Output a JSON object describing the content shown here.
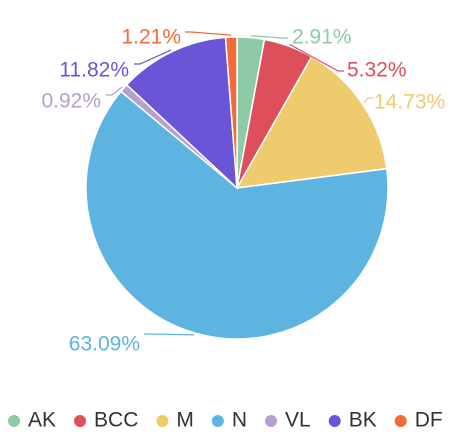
{
  "chart_data": {
    "type": "pie",
    "title": "",
    "legend_position": "bottom",
    "slices": [
      {
        "name": "AK",
        "value": 2.91,
        "label": "2.91%",
        "color": "#8fcaa6"
      },
      {
        "name": "BCC",
        "value": 5.32,
        "label": "5.32%",
        "color": "#dc4f5b"
      },
      {
        "name": "M",
        "value": 14.73,
        "label": "14.73%",
        "color": "#f0cb6e"
      },
      {
        "name": "N",
        "value": 63.09,
        "label": "63.09%",
        "color": "#5db4e1"
      },
      {
        "name": "VL",
        "value": 0.92,
        "label": "0.92%",
        "color": "#b59fd0"
      },
      {
        "name": "BK",
        "value": 11.82,
        "label": "11.82%",
        "color": "#6b55d6"
      },
      {
        "name": "DF",
        "value": 1.21,
        "label": "1.21%",
        "color": "#f26b3a"
      }
    ]
  }
}
